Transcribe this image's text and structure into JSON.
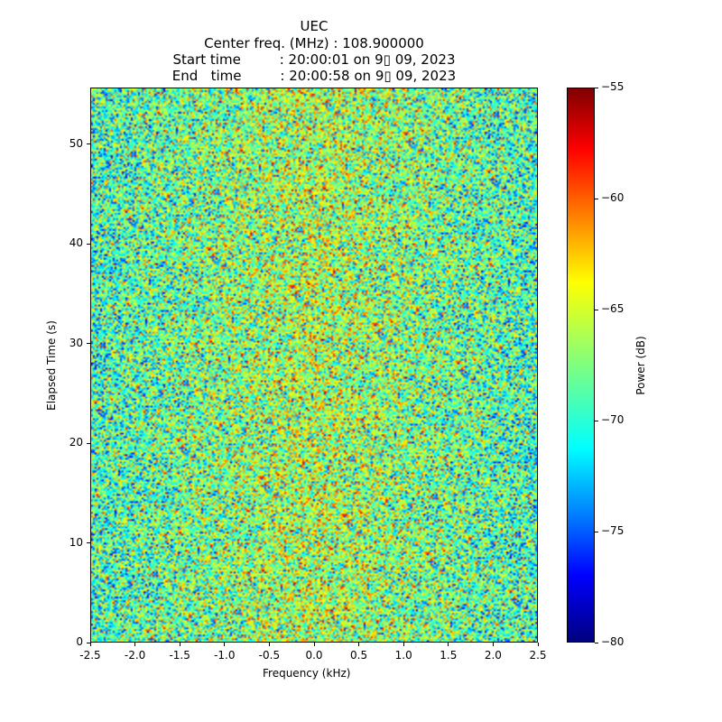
{
  "chart_data": {
    "type": "heatmap",
    "title_lines": [
      "UEC",
      "Center freq. (MHz) : 108.900000",
      "Start time         : 20:00:01 on 9▯ 09, 2023",
      "End   time         : 20:00:58 on 9▯ 09, 2023"
    ],
    "xlabel": "Frequency (kHz)",
    "ylabel": "Elapsed Time (s)",
    "xlim": [
      -2.5,
      2.5
    ],
    "ylim": [
      0,
      55.7
    ],
    "xticks": [
      "-2.5",
      "-2.0",
      "-1.5",
      "-1.0",
      "-0.5",
      "0.0",
      "0.5",
      "1.0",
      "1.5",
      "2.0",
      "2.5"
    ],
    "yticks": [
      "0",
      "10",
      "20",
      "30",
      "40",
      "50"
    ],
    "colorbar": {
      "label": "Power (dB)",
      "range": [
        -80,
        -55
      ],
      "ticks": [
        "−80",
        "−75",
        "−70",
        "−65",
        "−60",
        "−55"
      ],
      "colormap": "jet"
    },
    "values_description_note": null,
    "noise_model": {
      "mean_db": -69,
      "center_mean_db": -66,
      "spread_db": 4
    }
  }
}
